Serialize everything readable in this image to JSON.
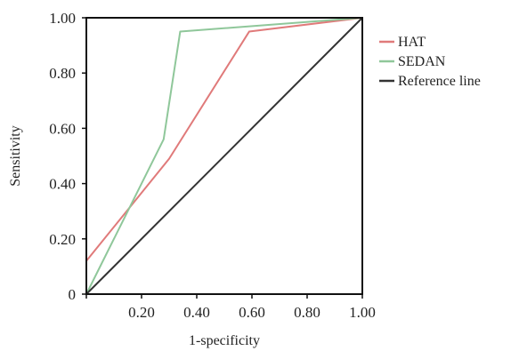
{
  "chart_data": {
    "type": "line",
    "xlabel": "1-specificity",
    "ylabel": "Sensitivity",
    "xlim": [
      0,
      1
    ],
    "ylim": [
      0,
      1
    ],
    "x_ticks": [
      {
        "value": 0,
        "label": ""
      },
      {
        "value": 0.2,
        "label": "0.20"
      },
      {
        "value": 0.4,
        "label": "0.40"
      },
      {
        "value": 0.6,
        "label": "0.60"
      },
      {
        "value": 0.8,
        "label": "0.80"
      },
      {
        "value": 1.0,
        "label": "1.00"
      }
    ],
    "y_ticks": [
      {
        "value": 0,
        "label": "0"
      },
      {
        "value": 0.2,
        "label": "0.20"
      },
      {
        "value": 0.4,
        "label": "0.40"
      },
      {
        "value": 0.6,
        "label": "0.60"
      },
      {
        "value": 0.8,
        "label": "0.80"
      },
      {
        "value": 1.0,
        "label": "1.00"
      }
    ],
    "grid": false,
    "legend_position": "right",
    "series": [
      {
        "name": "HAT",
        "color": "#e07a7a",
        "points": [
          [
            0,
            0.12
          ],
          [
            0.3,
            0.49
          ],
          [
            0.59,
            0.95
          ],
          [
            1.0,
            1.0
          ]
        ]
      },
      {
        "name": "SEDAN",
        "color": "#8fc79a",
        "points": [
          [
            0,
            0
          ],
          [
            0.28,
            0.56
          ],
          [
            0.34,
            0.95
          ],
          [
            1.0,
            1.0
          ]
        ]
      },
      {
        "name": "Reference line",
        "color": "#333333",
        "points": [
          [
            0,
            0
          ],
          [
            1.0,
            1.0
          ]
        ]
      }
    ]
  }
}
